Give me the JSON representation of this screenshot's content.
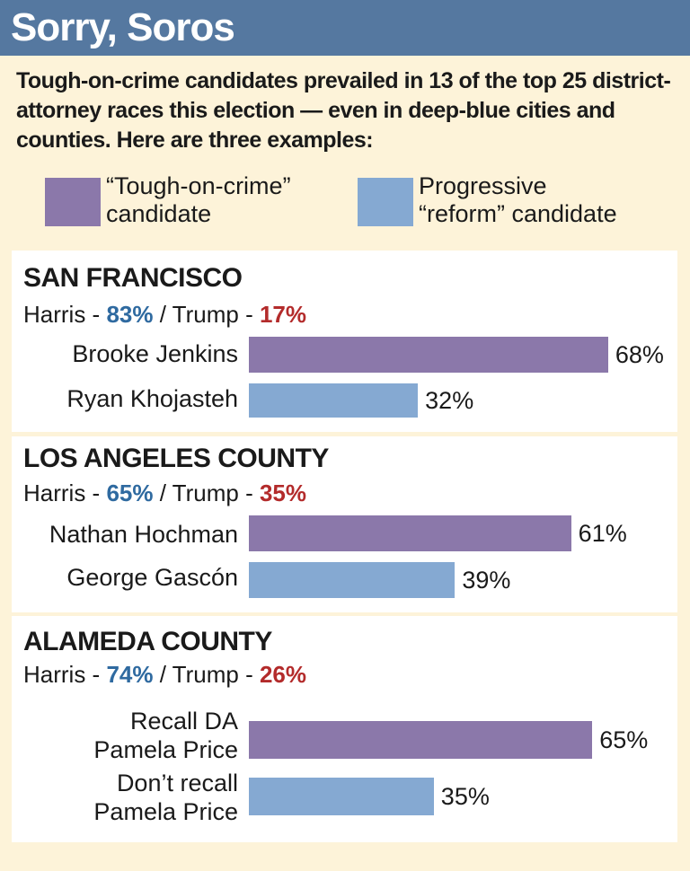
{
  "header": {
    "title": "Sorry, Soros"
  },
  "intro": "Tough-on-crime candidates prevailed in 13 of the top 25 district-attorney races this election — even in deep-blue cities and counties. Here are three examples:",
  "legend": {
    "tough": {
      "label_line1": "“Tough-on-crime”",
      "label_line2": "candidate",
      "color": "#8b78aa"
    },
    "progressive": {
      "label_line1": "Progressive",
      "label_line2": "“reform” candidate",
      "color": "#85a9d2"
    }
  },
  "chart_data": {
    "type": "bar",
    "orientation": "horizontal",
    "xlim": [
      0,
      100
    ],
    "groups": [
      {
        "region": "SAN FRANCISCO",
        "harris_label": "Harris - ",
        "harris_pct": "83%",
        "sep": " / Trump - ",
        "trump_pct": "17%",
        "candidates": [
          {
            "lines": [
              "Brooke Jenkins"
            ],
            "value": 68,
            "label": "68%",
            "kind": "tough"
          },
          {
            "lines": [
              "Ryan Khojasteh"
            ],
            "value": 32,
            "label": "32%",
            "kind": "prog"
          }
        ]
      },
      {
        "region": "LOS ANGELES COUNTY",
        "harris_label": "Harris - ",
        "harris_pct": "65%",
        "sep": " / Trump - ",
        "trump_pct": "35%",
        "candidates": [
          {
            "lines": [
              "Nathan Hochman"
            ],
            "value": 61,
            "label": "61%",
            "kind": "tough"
          },
          {
            "lines": [
              "George Gascón"
            ],
            "value": 39,
            "label": "39%",
            "kind": "prog"
          }
        ]
      },
      {
        "region": "ALAMEDA COUNTY",
        "harris_label": "Harris - ",
        "harris_pct": "74%",
        "sep": " / Trump - ",
        "trump_pct": "26%",
        "candidates": [
          {
            "lines": [
              "Recall DA",
              "Pamela Price"
            ],
            "value": 65,
            "label": "65%",
            "kind": "tough"
          },
          {
            "lines": [
              "Don’t recall",
              "Pamela Price"
            ],
            "value": 35,
            "label": "35%",
            "kind": "prog"
          }
        ]
      }
    ]
  }
}
